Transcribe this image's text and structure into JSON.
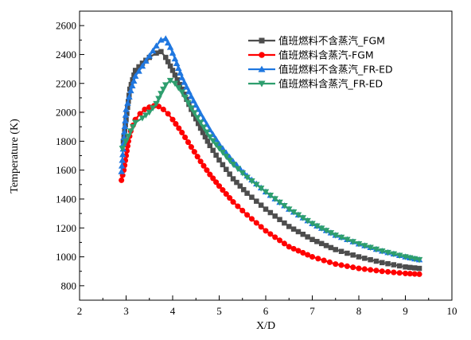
{
  "chart_data": {
    "type": "line",
    "xlabel": "X/D",
    "ylabel": "Temperature (K)",
    "xlim": [
      2,
      10
    ],
    "ylim": [
      700,
      2700
    ],
    "xticks": [
      2,
      3,
      4,
      5,
      6,
      7,
      8,
      9,
      10
    ],
    "yticks": [
      800,
      1000,
      1200,
      1400,
      1600,
      1800,
      2000,
      2200,
      2400,
      2600
    ],
    "grid": false,
    "legend_position": "top-right",
    "series": [
      {
        "name": "值班燃料不含蒸汽_FGM",
        "color": "#4d4d4d",
        "marker": "square",
        "x": [
          2.94,
          3.0,
          3.08,
          3.2,
          3.35,
          3.5,
          3.65,
          3.75,
          3.85,
          4.0,
          4.2,
          4.4,
          4.6,
          4.8,
          5.0,
          5.3,
          5.6,
          6.0,
          6.5,
          7.0,
          7.5,
          8.0,
          8.5,
          9.0,
          9.3
        ],
        "y": [
          1800,
          1950,
          2160,
          2290,
          2340,
          2380,
          2410,
          2420,
          2380,
          2290,
          2160,
          2020,
          1890,
          1770,
          1670,
          1540,
          1440,
          1330,
          1210,
          1120,
          1050,
          1000,
          960,
          930,
          920
        ]
      },
      {
        "name": "值班燃料含蒸汽-FGM",
        "color": "#ff0000",
        "marker": "circle",
        "x": [
          2.9,
          2.95,
          3.0,
          3.05,
          3.1,
          3.2,
          3.3,
          3.4,
          3.5,
          3.6,
          3.7,
          3.8,
          3.9,
          4.0,
          4.2,
          4.4,
          4.6,
          4.8,
          5.0,
          5.3,
          5.6,
          6.0,
          6.5,
          7.0,
          7.5,
          8.0,
          8.5,
          9.0,
          9.3
        ],
        "y": [
          1530,
          1600,
          1700,
          1800,
          1870,
          1950,
          1990,
          2020,
          2035,
          2045,
          2040,
          2020,
          1990,
          1950,
          1860,
          1760,
          1660,
          1570,
          1490,
          1380,
          1290,
          1180,
          1070,
          1000,
          950,
          920,
          900,
          885,
          880
        ]
      },
      {
        "name": "值班燃料不含蒸汽_FR-ED",
        "color": "#1f77e0",
        "marker": "triangle-up",
        "x": [
          2.9,
          3.0,
          3.1,
          3.2,
          3.35,
          3.5,
          3.65,
          3.75,
          3.85,
          3.95,
          4.05,
          4.2,
          4.4,
          4.6,
          4.8,
          5.0,
          5.3,
          5.6,
          6.0,
          6.5,
          7.0,
          7.5,
          8.0,
          8.5,
          9.0,
          9.3
        ],
        "y": [
          1590,
          2020,
          2150,
          2250,
          2320,
          2390,
          2460,
          2500,
          2510,
          2450,
          2370,
          2240,
          2110,
          1990,
          1880,
          1780,
          1660,
          1560,
          1450,
          1330,
          1230,
          1150,
          1090,
          1040,
          1000,
          980
        ]
      },
      {
        "name": "值班燃料含蒸汽_FR-ED",
        "color": "#2e9e6e",
        "marker": "triangle-down",
        "x": [
          2.92,
          3.0,
          3.1,
          3.2,
          3.35,
          3.5,
          3.65,
          3.75,
          3.85,
          3.95,
          4.05,
          4.2,
          4.4,
          4.6,
          4.8,
          5.0,
          5.3,
          5.6,
          6.0,
          6.5,
          7.0,
          7.5,
          8.0,
          8.5,
          9.0,
          9.3
        ],
        "y": [
          1750,
          1800,
          1870,
          1930,
          1960,
          2000,
          2060,
          2130,
          2190,
          2220,
          2200,
          2140,
          2030,
          1930,
          1830,
          1750,
          1640,
          1550,
          1450,
          1330,
          1230,
          1150,
          1090,
          1040,
          1000,
          980
        ]
      }
    ]
  }
}
